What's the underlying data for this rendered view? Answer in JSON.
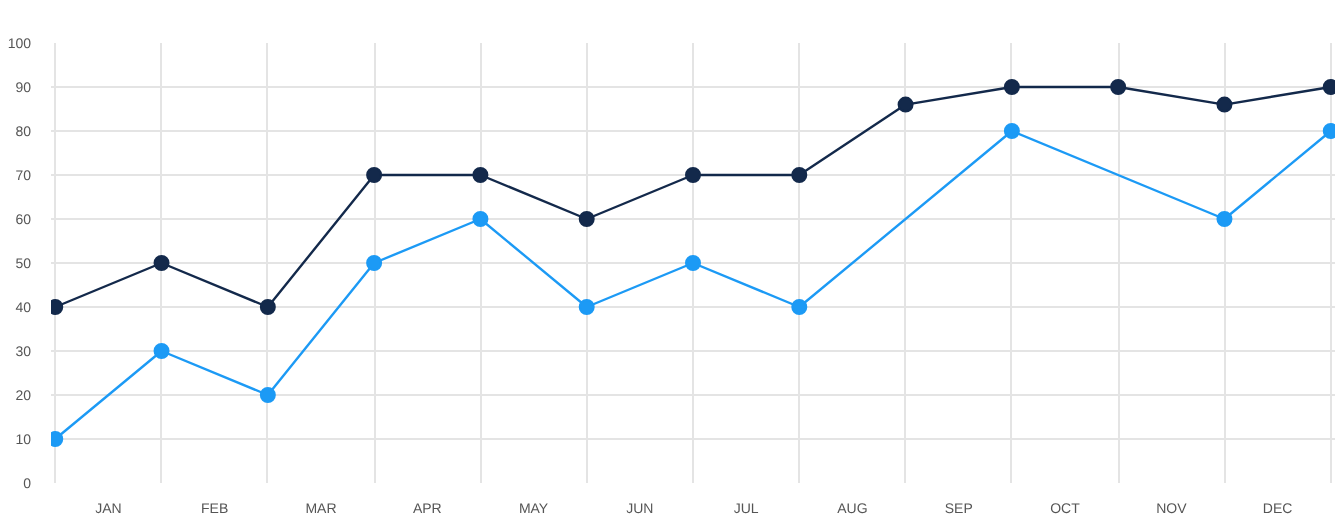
{
  "chart_data": {
    "type": "line",
    "categories": [
      null,
      "JAN",
      null,
      "FEB",
      null,
      "MAR",
      null,
      "APR",
      null,
      "MAY",
      null,
      "JUN",
      null,
      "JUL",
      null,
      "AUG",
      null,
      "SEP",
      null,
      "OCT",
      null,
      "NOV",
      null,
      "DEC",
      null
    ],
    "ylim": [
      0,
      100
    ],
    "yticks": [
      0,
      10,
      20,
      30,
      40,
      50,
      60,
      70,
      80,
      90,
      100
    ],
    "series": [
      {
        "color": "#1c9af5",
        "values": [
          10,
          null,
          30,
          null,
          20,
          null,
          50,
          null,
          60,
          null,
          40,
          null,
          50,
          null,
          40,
          null,
          null,
          null,
          80,
          null,
          null,
          null,
          60,
          null,
          80
        ]
      },
      {
        "color": "#13294b",
        "values": [
          40,
          null,
          50,
          null,
          40,
          null,
          70,
          null,
          70,
          null,
          60,
          null,
          70,
          null,
          70,
          null,
          86,
          null,
          90,
          null,
          90,
          null,
          86,
          null,
          90
        ]
      }
    ],
    "grid": true,
    "marker": "circle",
    "line_style": "solid"
  }
}
